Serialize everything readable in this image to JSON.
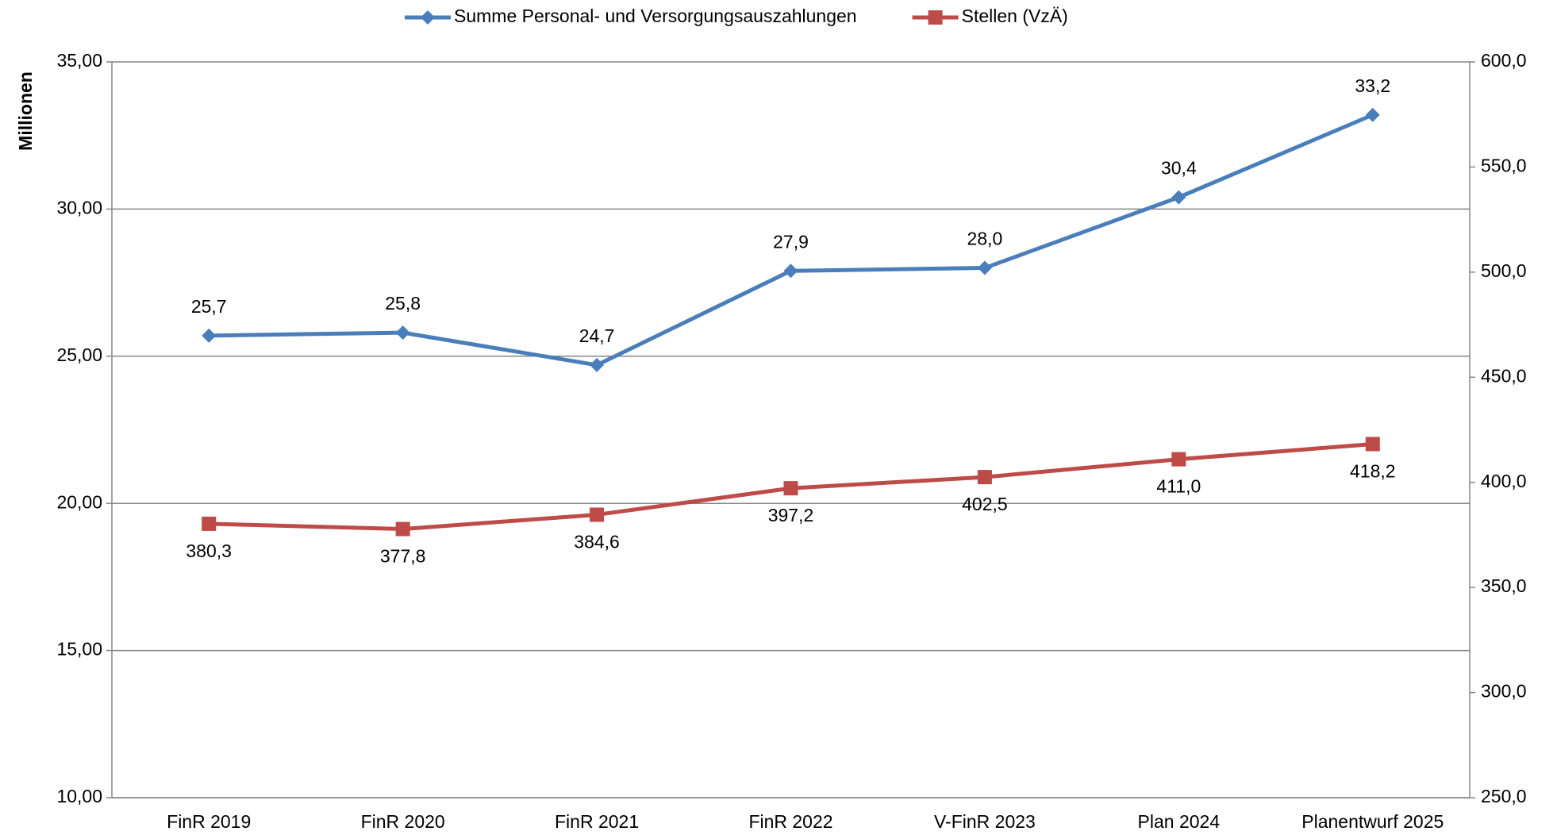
{
  "chart_data": {
    "type": "line",
    "y_label": "Millionen",
    "categories": [
      "FinR 2019",
      "FinR 2020",
      "FinR 2021",
      "FinR 2022",
      "V-FinR 2023",
      "Plan 2024",
      "Planentwurf 2025"
    ],
    "series": [
      {
        "name": "Summe Personal- und Versorgungsauszahlungen",
        "color": "#4a7ebb",
        "marker": "diamond",
        "values": [
          25.7,
          25.8,
          24.7,
          27.9,
          28.0,
          30.4,
          33.2
        ],
        "value_labels": [
          "25,7",
          "25,8",
          "24,7",
          "27,9",
          "28,0",
          "30,4",
          "33,2"
        ]
      },
      {
        "name": "Stellen (VzÄ)",
        "color": "#be4b48",
        "marker": "square",
        "axis": "y2",
        "values": [
          380.3,
          377.8,
          384.6,
          397.2,
          402.5,
          411.0,
          418.2
        ],
        "value_labels": [
          "380,3",
          "377,8",
          "384,6",
          "397,2",
          "402,5",
          "411,0",
          "418,2"
        ]
      }
    ],
    "ylim": [
      10,
      35
    ],
    "yticks": [
      {
        "value": 10,
        "label": "10,00"
      },
      {
        "value": 15,
        "label": "15,00"
      },
      {
        "value": 20,
        "label": "20,00"
      },
      {
        "value": 25,
        "label": "25,00"
      },
      {
        "value": 30,
        "label": "30,00"
      },
      {
        "value": 35,
        "label": "35,00"
      }
    ],
    "y2lim": [
      250,
      600
    ],
    "y2ticks": [
      {
        "value": 250,
        "label": "250,0"
      },
      {
        "value": 300,
        "label": "300,0"
      },
      {
        "value": 350,
        "label": "350,0"
      },
      {
        "value": 400,
        "label": "400,0"
      },
      {
        "value": 450,
        "label": "450,0"
      },
      {
        "value": 500,
        "label": "500,0"
      },
      {
        "value": 550,
        "label": "550,0"
      },
      {
        "value": 600,
        "label": "600,0"
      }
    ],
    "grid": true,
    "legend": "top"
  }
}
